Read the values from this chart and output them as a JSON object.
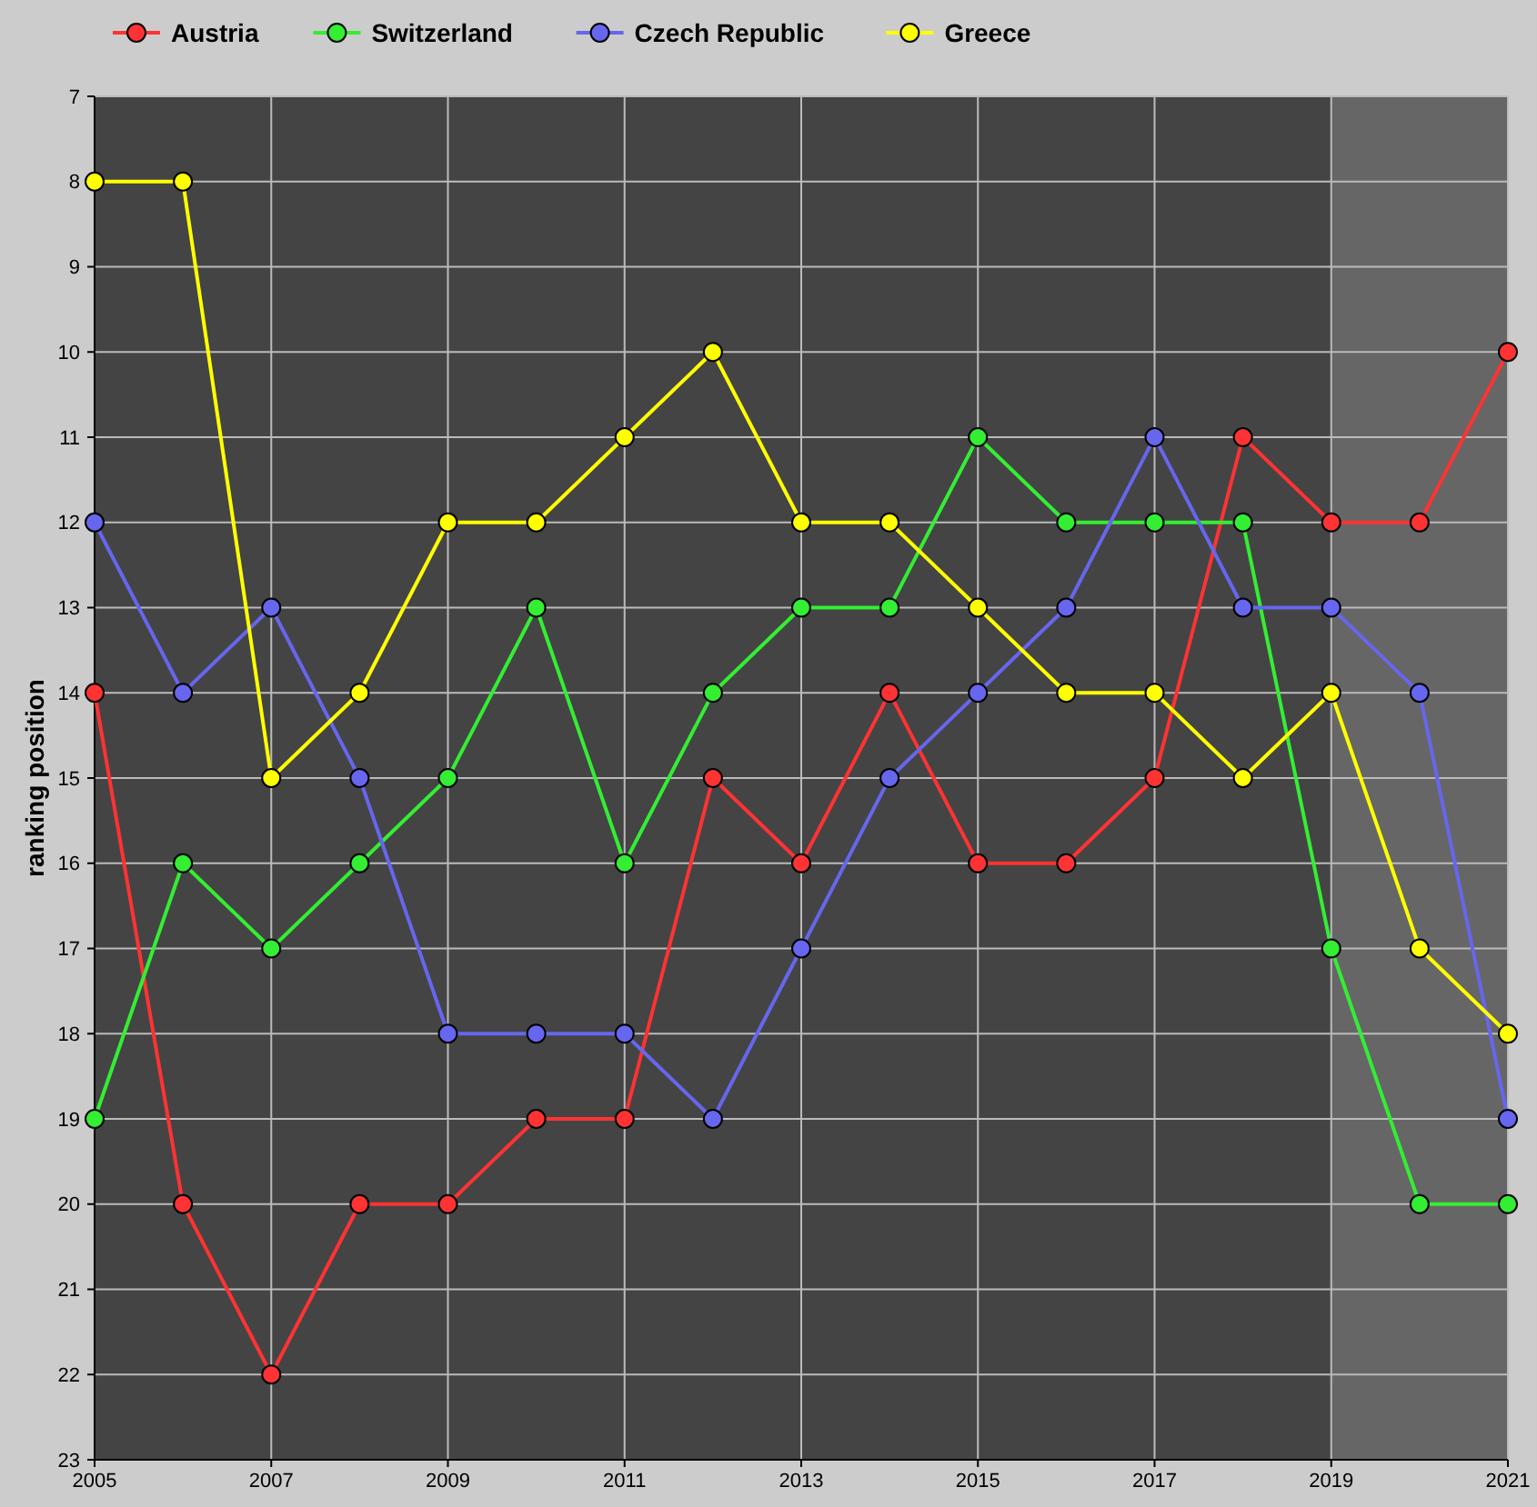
{
  "chart_data": {
    "type": "line",
    "ylabel": "ranking position",
    "x": [
      2005,
      2006,
      2007,
      2008,
      2009,
      2010,
      2011,
      2012,
      2013,
      2014,
      2015,
      2016,
      2017,
      2018,
      2019,
      2020,
      2021
    ],
    "series": [
      {
        "name": "Austria",
        "color": "#ff3333",
        "values": [
          14,
          20,
          22,
          20,
          20,
          19,
          19,
          15,
          16,
          14,
          16,
          16,
          15,
          11,
          12,
          12,
          10
        ]
      },
      {
        "name": "Switzerland",
        "color": "#33ee33",
        "values": [
          19,
          16,
          17,
          16,
          15,
          13,
          16,
          14,
          13,
          13,
          11,
          12,
          12,
          12,
          17,
          20,
          20
        ]
      },
      {
        "name": "Czech Republic",
        "color": "#6666ee",
        "values": [
          12,
          14,
          13,
          15,
          18,
          18,
          18,
          19,
          17,
          15,
          14,
          13,
          11,
          13,
          13,
          14,
          19
        ]
      },
      {
        "name": "Greece",
        "color": "#ffff00",
        "values": [
          8,
          8,
          15,
          14,
          12,
          12,
          11,
          10,
          12,
          12,
          13,
          14,
          14,
          15,
          14,
          17,
          18
        ]
      }
    ],
    "xlim": [
      2005,
      2021
    ],
    "xticks": [
      2005,
      2007,
      2009,
      2011,
      2013,
      2015,
      2017,
      2019,
      2021
    ],
    "ylim": [
      23,
      7
    ],
    "yticks": [
      7,
      8,
      9,
      10,
      11,
      12,
      13,
      14,
      15,
      16,
      17,
      18,
      19,
      20,
      21,
      22,
      23
    ],
    "bands": [
      {
        "axis": "x",
        "from": 2019,
        "to": 2021,
        "color": "#666666"
      }
    ],
    "grid": true,
    "legend": "top left",
    "marker": "circle",
    "line_style": "solid"
  }
}
